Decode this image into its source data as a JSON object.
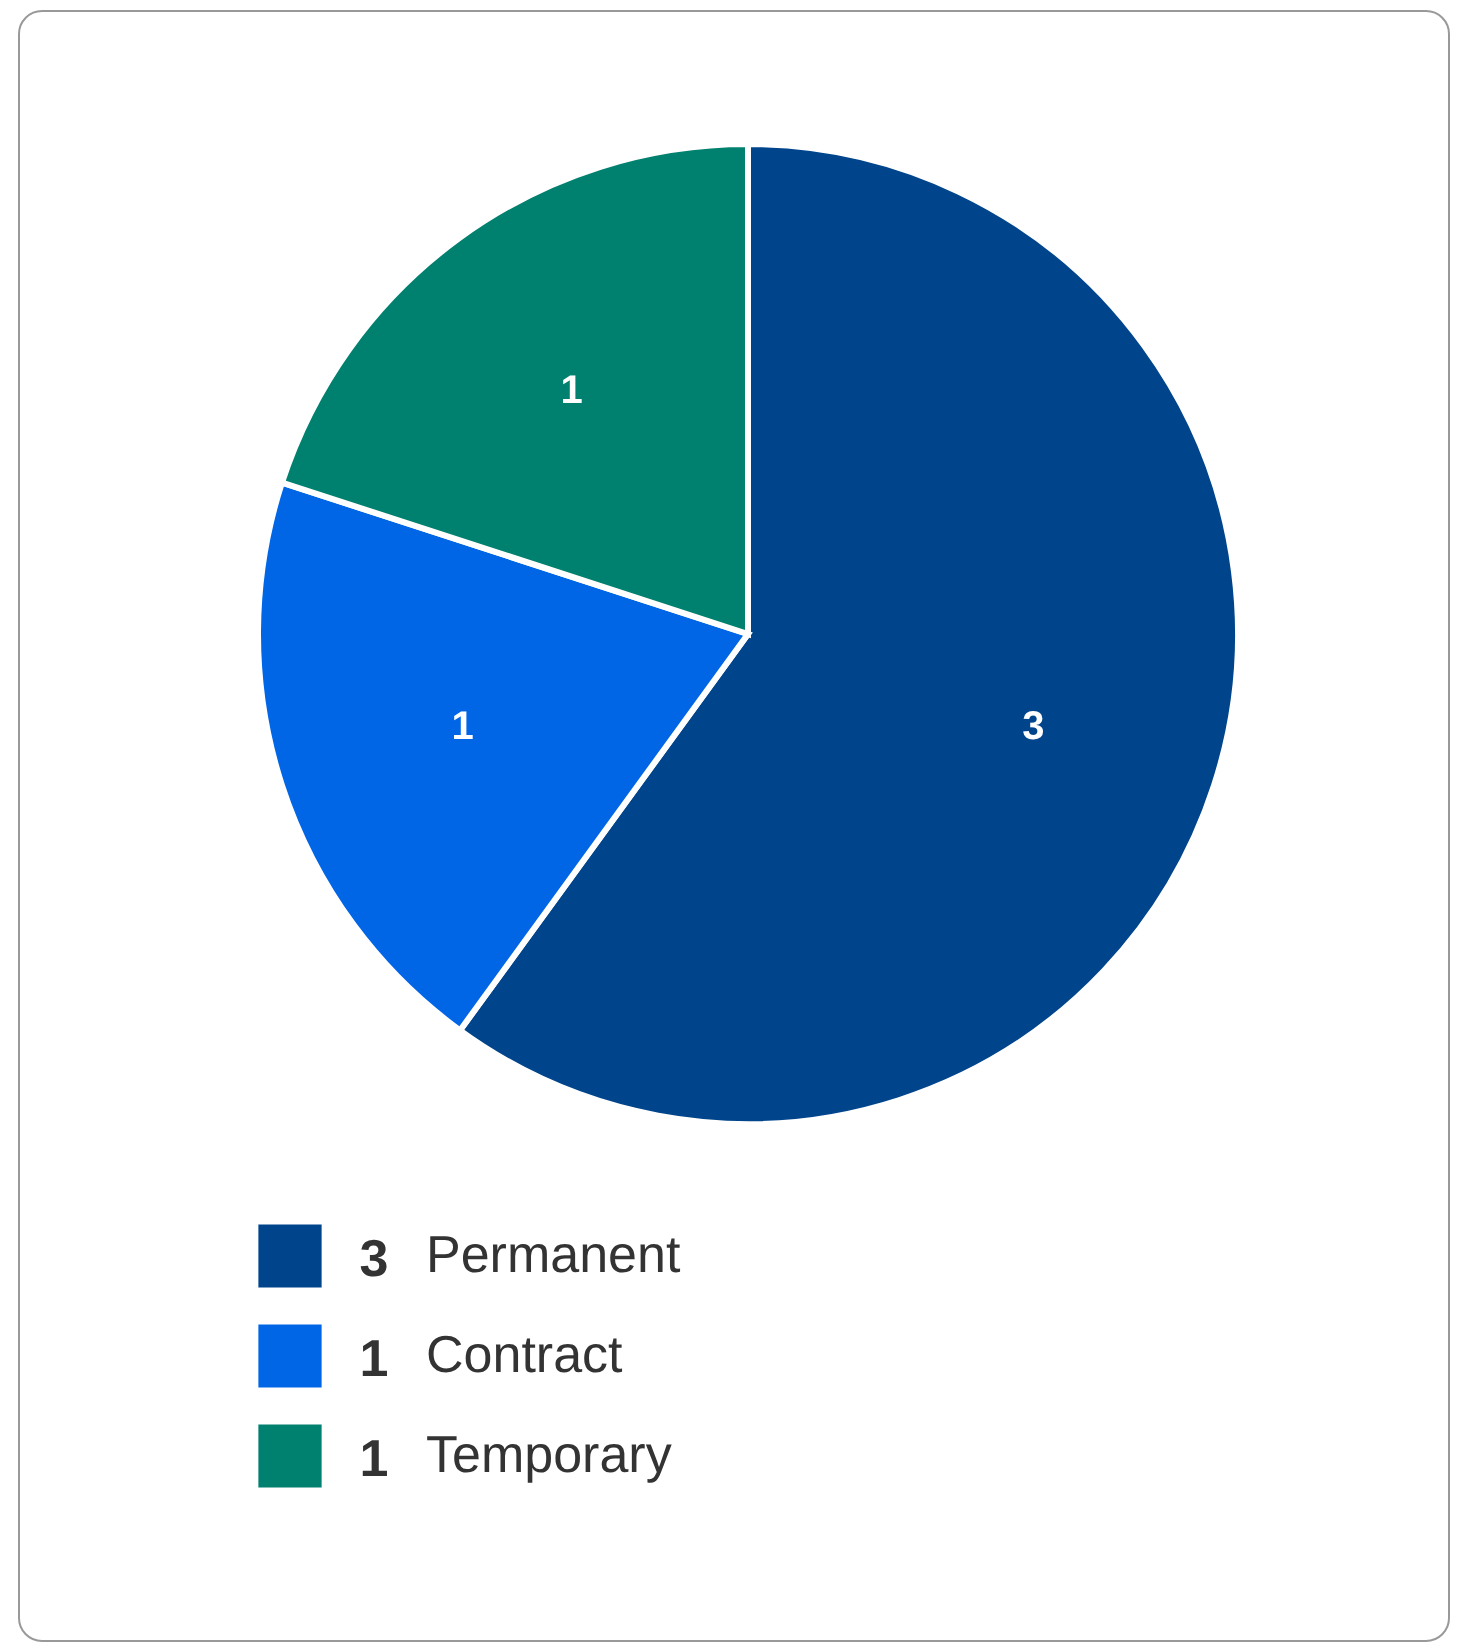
{
  "chart_data": {
    "type": "pie",
    "categories": [
      "Permanent",
      "Contract",
      "Temporary"
    ],
    "values": [
      3,
      1,
      1
    ],
    "colors": [
      "#00458b",
      "#0066e6",
      "#00806f"
    ],
    "data_labels": true,
    "legend": "bottom",
    "annotations": [
      "3",
      "1",
      "1"
    ]
  }
}
